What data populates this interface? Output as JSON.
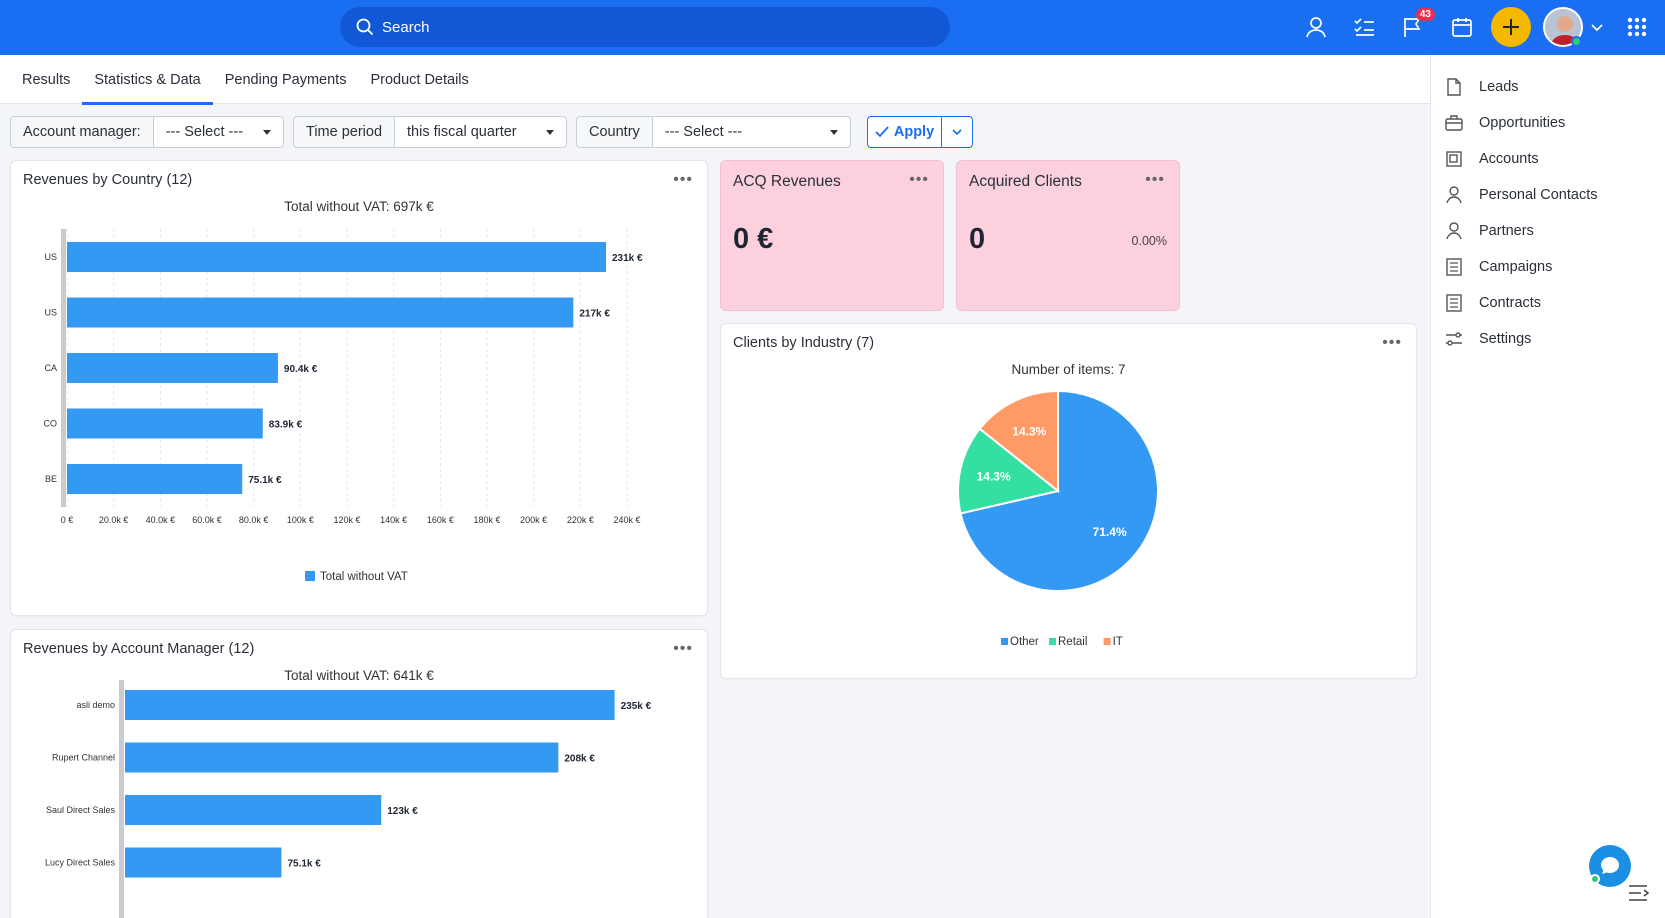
{
  "topbar": {
    "search_placeholder": "Search",
    "notifications_count": "43",
    "icons": [
      "user-icon",
      "tasks-icon",
      "flag-icon",
      "calendar-icon",
      "plus-icon",
      "avatar",
      "chevron-down-icon",
      "apps-grid-icon"
    ]
  },
  "tabs": [
    {
      "label": "Results"
    },
    {
      "label": "Statistics & Data"
    },
    {
      "label": "Pending Payments"
    },
    {
      "label": "Product Details"
    }
  ],
  "filters": {
    "account_manager": {
      "label": "Account manager:",
      "value": "--- Select ---"
    },
    "time_period": {
      "label": "Time period",
      "value": "this fiscal quarter"
    },
    "country": {
      "label": "Country",
      "value": "--- Select ---"
    },
    "apply_label": "Apply"
  },
  "cards": {
    "revenues_country": {
      "title": "Revenues by Country (12)",
      "subtitle": "Total without VAT: 697k €",
      "menu": "•••"
    },
    "revenues_manager": {
      "title": "Revenues by Account Manager (12)",
      "subtitle": "Total without VAT: 641k €",
      "menu": "•••"
    },
    "acq_revenues": {
      "title": "ACQ Revenues",
      "value": "0 €",
      "menu": "•••"
    },
    "acquired_clients": {
      "title": "Acquired Clients",
      "value": "0",
      "percent": "0.00%",
      "menu": "•••"
    },
    "clients_industry": {
      "title": "Clients by Industry (7)",
      "subtitle": "Number of items: 7",
      "menu": "•••"
    }
  },
  "chart_data": [
    {
      "type": "bar",
      "orientation": "horizontal",
      "categories": [
        "US",
        "US",
        "CA",
        "CO",
        "BE"
      ],
      "series": [
        {
          "name": "Total without VAT",
          "values": [
            231000,
            217000,
            90400,
            83900,
            75100
          ]
        }
      ],
      "value_labels": [
        "231k €",
        "217k €",
        "90.4k €",
        "83.9k €",
        "75.1k €"
      ],
      "xlim": [
        0,
        240000
      ],
      "x_ticks": [
        "0 €",
        "20.0k €",
        "40.0k €",
        "60.0k €",
        "80.0k €",
        "100k €",
        "120k €",
        "140k €",
        "160k €",
        "180k €",
        "200k €",
        "220k €",
        "240k €"
      ],
      "legend": "bottom",
      "grid": true,
      "color": "#3399f3"
    },
    {
      "type": "bar",
      "orientation": "horizontal",
      "categories": [
        "asli demo",
        "Rupert Channel",
        "Saul Direct Sales",
        "Lucy Direct Sales"
      ],
      "series": [
        {
          "values": [
            235000,
            208000,
            123000,
            75100
          ]
        }
      ],
      "value_labels": [
        "235k €",
        "208k €",
        "123k €",
        "75.1k €"
      ],
      "xlim": [
        0,
        240000
      ],
      "color": "#3399f3"
    },
    {
      "type": "pie",
      "categories": [
        "Other",
        "Retail",
        "IT"
      ],
      "values": [
        71.4,
        14.3,
        14.3
      ],
      "value_labels": [
        "71.4%",
        "14.3%",
        "14.3%"
      ],
      "colors": [
        "#3399f3",
        "#34e0a1",
        "#ff9966"
      ],
      "legend": "bottom"
    }
  ],
  "sidebar": {
    "items": [
      {
        "label": "Leads",
        "icon": "document-icon"
      },
      {
        "label": "Opportunities",
        "icon": "briefcase-icon"
      },
      {
        "label": "Accounts",
        "icon": "accounts-icon"
      },
      {
        "label": "Personal Contacts",
        "icon": "person-icon"
      },
      {
        "label": "Partners",
        "icon": "person-icon"
      },
      {
        "label": "Campaigns",
        "icon": "list-icon"
      },
      {
        "label": "Contracts",
        "icon": "list-icon"
      },
      {
        "label": "Settings",
        "icon": "sliders-icon"
      }
    ]
  }
}
